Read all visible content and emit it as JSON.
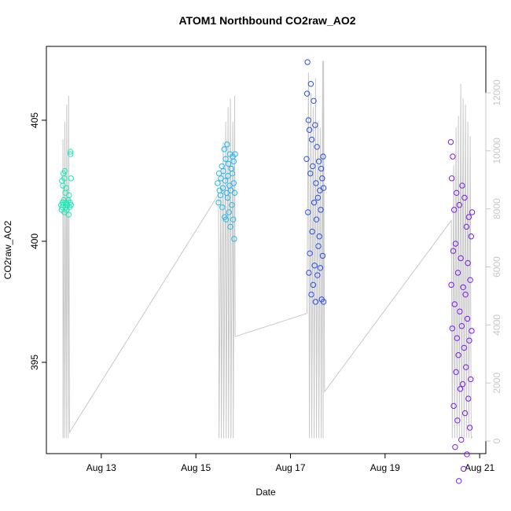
{
  "chart_data": {
    "type": "scatter",
    "title": "ATOM1 Northbound CO2raw_AO2",
    "x_label": "Date",
    "y_label": "CO2raw_AO2",
    "xlim": [
      11.84,
      21.13
    ],
    "xticks": [
      {
        "value": 13,
        "label": "Aug 13"
      },
      {
        "value": 15,
        "label": "Aug 15"
      },
      {
        "value": 17,
        "label": "Aug 17"
      },
      {
        "value": 19,
        "label": "Aug 19"
      },
      {
        "value": 21,
        "label": "Aug 21"
      }
    ],
    "ylim": [
      391.23,
      408.05
    ],
    "yticks": [
      395,
      400,
      405
    ],
    "y2lim": [
      -433,
      13598
    ],
    "y2ticks": [
      0,
      2000,
      4000,
      6000,
      8000,
      10000,
      12000
    ],
    "y2_color": "#c8c8c8",
    "series": [
      {
        "color": "#1de9b6",
        "x": [
          12.15,
          12.16,
          12.17,
          12.18,
          12.18,
          12.19,
          12.2,
          12.2,
          12.21,
          12.22,
          12.22,
          12.23,
          12.24,
          12.24,
          12.25,
          12.26,
          12.27,
          12.28,
          12.3,
          12.31,
          12.32,
          12.33,
          12.34,
          12.35,
          12.35,
          12.36,
          12.36
        ],
        "values": [
          401.5,
          401.3,
          402.5,
          401.6,
          401.4,
          402.3,
          401.5,
          402.8,
          401.7,
          402.6,
          401.2,
          402.9,
          401.4,
          402.0,
          401.6,
          402.2,
          401.3,
          401.5,
          401.7,
          401.1,
          401.9,
          401.4,
          401.6,
          403.7,
          403.6,
          401.5,
          402.6
        ]
      },
      {
        "color": "#1fb8f0",
        "x": [
          15.46,
          15.48,
          15.49,
          15.5,
          15.52,
          15.53,
          15.55,
          15.56,
          15.57,
          15.58,
          15.6,
          15.61,
          15.62,
          15.63,
          15.64,
          15.65,
          15.66,
          15.67,
          15.68,
          15.69,
          15.7,
          15.71,
          15.72,
          15.73,
          15.74,
          15.75,
          15.76,
          15.77,
          15.78,
          15.79,
          15.8,
          15.8,
          15.81,
          15.82,
          15.83
        ],
        "values": [
          402.4,
          401.6,
          402.8,
          402.1,
          401.9,
          402.6,
          403.1,
          401.4,
          402.2,
          402.9,
          403.8,
          401.0,
          402.5,
          403.4,
          400.9,
          402.0,
          404.0,
          401.8,
          402.7,
          403.2,
          401.2,
          402.3,
          403.6,
          400.6,
          402.1,
          403.0,
          401.5,
          402.8,
          403.5,
          400.9,
          402.4,
          403.3,
          400.1,
          402.0,
          403.6
        ]
      },
      {
        "color": "#2a4ef0",
        "x": [
          17.34,
          17.35,
          17.36,
          17.37,
          17.38,
          17.39,
          17.4,
          17.41,
          17.42,
          17.43,
          17.44,
          17.45,
          17.46,
          17.47,
          17.48,
          17.49,
          17.5,
          17.51,
          17.52,
          17.53,
          17.54,
          17.55,
          17.56,
          17.57,
          17.58,
          17.59,
          17.6,
          17.61,
          17.62,
          17.63,
          17.64,
          17.65,
          17.66,
          17.67,
          17.68,
          17.69,
          17.7,
          17.7
        ],
        "values": [
          403.4,
          406.1,
          407.4,
          401.2,
          405.0,
          398.7,
          404.6,
          399.5,
          402.8,
          406.5,
          397.8,
          404.2,
          400.4,
          403.1,
          398.2,
          405.8,
          401.6,
          399.0,
          404.8,
          397.5,
          402.4,
          400.9,
          403.9,
          398.6,
          401.8,
          399.8,
          403.3,
          400.2,
          402.1,
          398.9,
          401.3,
          403.0,
          397.6,
          402.6,
          399.4,
          403.5,
          397.5,
          402.2
        ]
      },
      {
        "color": "#7a1df0",
        "x": [
          20.39,
          20.4,
          20.41,
          20.42,
          20.43,
          20.44,
          20.45,
          20.46,
          20.47,
          20.48,
          20.49,
          20.5,
          20.51,
          20.52,
          20.53,
          20.54,
          20.55,
          20.56,
          20.57,
          20.58,
          20.59,
          20.6,
          20.61,
          20.62,
          20.63,
          20.64,
          20.65,
          20.66,
          20.67,
          20.68,
          20.69,
          20.7,
          20.71,
          20.72,
          20.73,
          20.74,
          20.75,
          20.76,
          20.77,
          20.78,
          20.79,
          20.8,
          20.81,
          20.82,
          20.83,
          20.84
        ],
        "values": [
          404.1,
          398.2,
          402.6,
          396.4,
          403.5,
          399.6,
          393.2,
          401.3,
          397.4,
          391.5,
          399.9,
          394.6,
          402.0,
          396.0,
          392.6,
          398.7,
          395.3,
          390.1,
          401.5,
          397.1,
          393.9,
          399.3,
          391.8,
          396.5,
          402.3,
          394.1,
          398.1,
          390.6,
          395.6,
          401.8,
          392.9,
          397.8,
          394.8,
          400.6,
          391.2,
          396.8,
          399.1,
          393.5,
          401.0,
          395.9,
          392.3,
          398.4,
          394.3,
          400.2,
          396.3,
          401.2
        ]
      },
      {
        "color": "#c8c8c8",
        "axis": "y2",
        "type": "line",
        "x": [
          12.19,
          12.19,
          12.22,
          12.23,
          12.26,
          12.27,
          12.3,
          12.31,
          12.33,
          15.48,
          15.49,
          15.53,
          15.54,
          15.58,
          15.59,
          15.63,
          15.64,
          15.68,
          15.69,
          15.73,
          15.74,
          15.78,
          15.79,
          15.82,
          15.83,
          17.35,
          17.38,
          17.4,
          17.43,
          17.45,
          17.48,
          17.5,
          17.53,
          17.55,
          17.58,
          17.6,
          17.63,
          17.65,
          17.68,
          17.69,
          17.7,
          17.72,
          20.4,
          20.42,
          20.45,
          20.47,
          20.5,
          20.52,
          20.55,
          20.57,
          20.6,
          20.62,
          20.65,
          20.67,
          20.7,
          20.72,
          20.75,
          20.77,
          20.8,
          20.82,
          20.85
        ],
        "values": [
          100,
          10400,
          100,
          11000,
          100,
          11600,
          100,
          11900,
          300,
          8500,
          100,
          9200,
          100,
          10300,
          100,
          11000,
          100,
          11500,
          100,
          11800,
          100,
          11000,
          100,
          11900,
          3600,
          4400,
          12700,
          100,
          12000,
          100,
          11500,
          100,
          12500,
          100,
          11000,
          100,
          10800,
          100,
          13100,
          100,
          13100,
          1700,
          7600,
          100,
          9500,
          100,
          10800,
          100,
          11200,
          100,
          12300,
          100,
          11800,
          100,
          11600,
          100,
          11000,
          100,
          10500,
          100,
          150
        ]
      }
    ]
  }
}
